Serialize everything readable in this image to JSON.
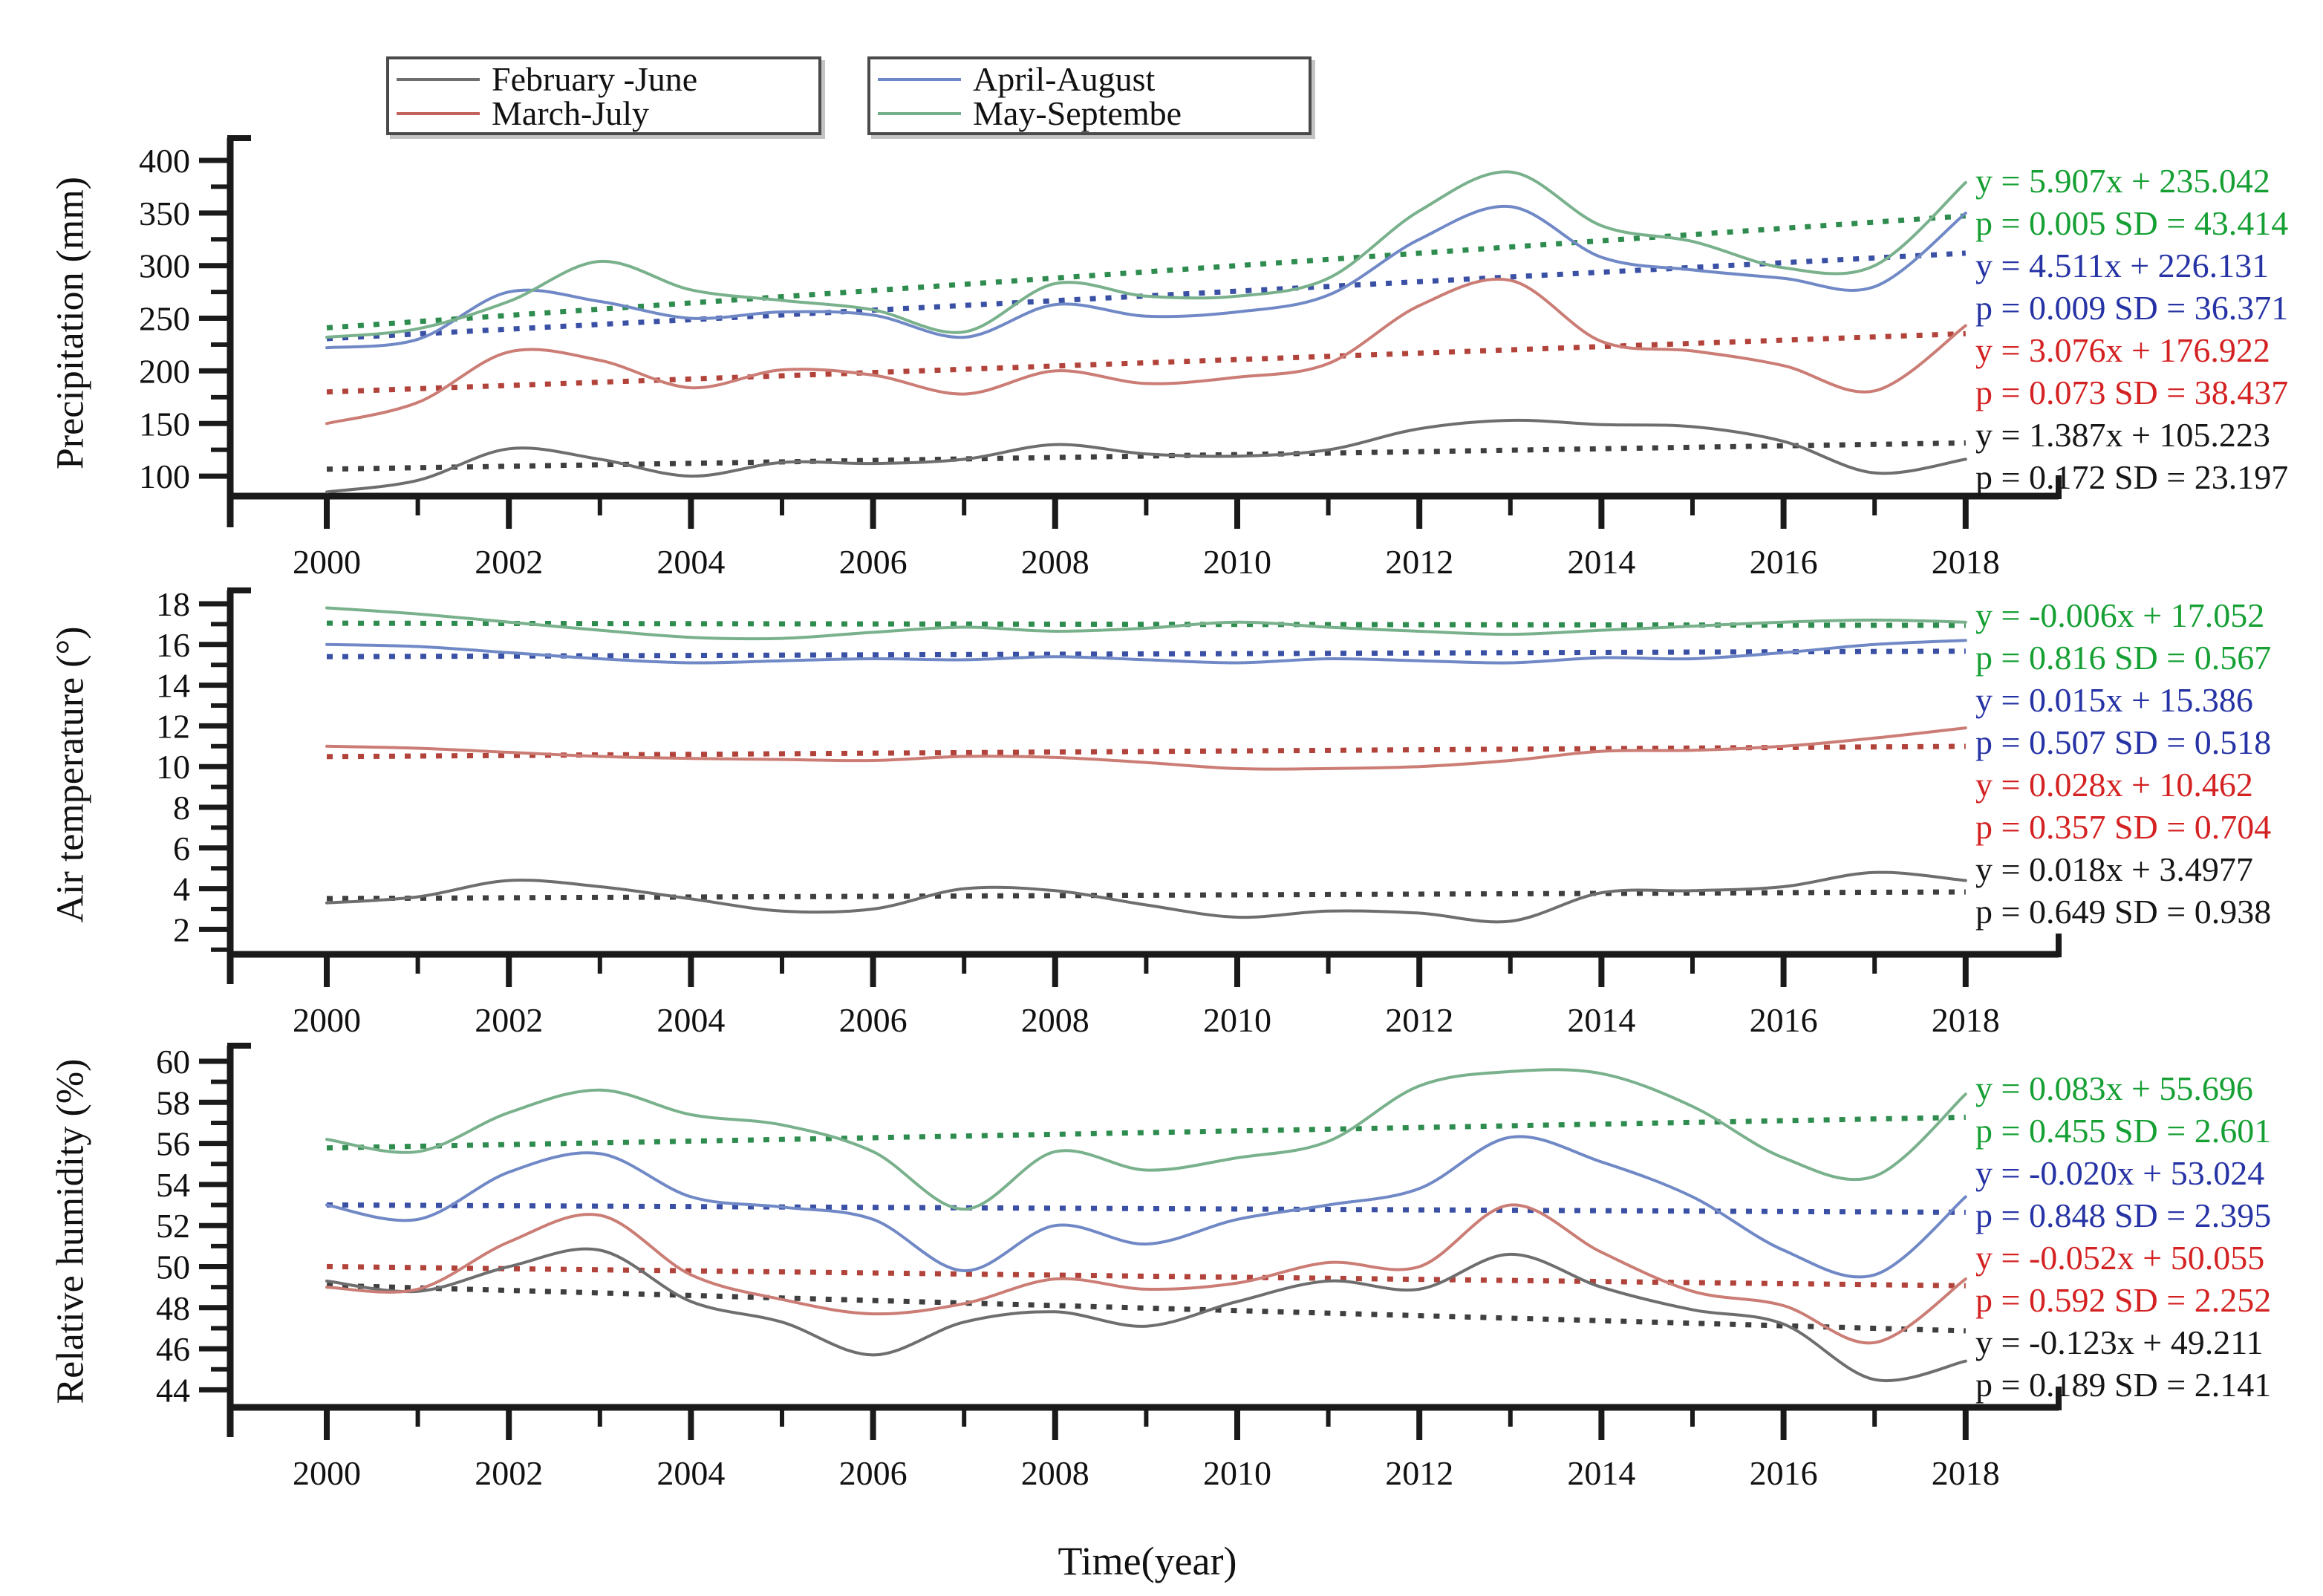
{
  "figure": {
    "xlabel": "Time(year)",
    "x_ticks": [
      2000,
      2002,
      2004,
      2006,
      2008,
      2010,
      2012,
      2014,
      2016,
      2018
    ],
    "legend": {
      "box1": [
        {
          "label": "February -June",
          "color": "#6e6e6e"
        },
        {
          "label": "March-July",
          "color": "#c4635b"
        }
      ],
      "box2": [
        {
          "label": "April-August",
          "color": "#6d87c7"
        },
        {
          "label": "May-Septembe",
          "color": "#74ae8b"
        }
      ]
    }
  },
  "chart_data": [
    {
      "type": "line",
      "panel": "precipitation",
      "ylabel": "Precipitation (mm)",
      "xlabel": "Time(year)",
      "ylim": [
        80,
        420
      ],
      "y_ticks": [
        100,
        150,
        200,
        250,
        300,
        350,
        400
      ],
      "x": [
        2000,
        2001,
        2002,
        2003,
        2004,
        2005,
        2006,
        2007,
        2008,
        2009,
        2010,
        2011,
        2012,
        2013,
        2014,
        2015,
        2016,
        2017,
        2018
      ],
      "grid": false,
      "series": [
        {
          "name": "May-Septembe",
          "colors": {
            "line": "#79b18c",
            "trend": "#2f8c4f",
            "text": "#16a034"
          },
          "values": [
            232,
            240,
            266,
            304,
            277,
            267,
            258,
            237,
            283,
            271,
            271,
            288,
            352,
            389,
            338,
            323,
            298,
            300,
            379
          ],
          "trend": {
            "slope": 5.907,
            "intercept": 235.042,
            "x_definition": "x = year - 1999"
          },
          "annotation": {
            "eq": "y = 5.907x + 235.042",
            "stats": "p = 0.005 SD = 43.414"
          }
        },
        {
          "name": "April-August",
          "colors": {
            "line": "#7089c6",
            "trend": "#3a50a5",
            "text": "#2633a5"
          },
          "values": [
            222,
            230,
            275,
            266,
            250,
            256,
            253,
            232,
            263,
            252,
            256,
            272,
            325,
            356,
            308,
            296,
            288,
            280,
            350
          ],
          "trend": {
            "slope": 4.511,
            "intercept": 226.131,
            "x_definition": "x = year - 1999"
          },
          "annotation": {
            "eq": "y = 4.511x + 226.131",
            "stats": "p = 0.009 SD = 36.371"
          }
        },
        {
          "name": "March-July",
          "colors": {
            "line": "#cb7d75",
            "trend": "#b2433b",
            "text": "#d42222"
          },
          "values": [
            150,
            170,
            218,
            210,
            184,
            201,
            196,
            178,
            200,
            188,
            194,
            207,
            262,
            286,
            228,
            219,
            205,
            181,
            243
          ],
          "trend": {
            "slope": 3.076,
            "intercept": 176.922,
            "x_definition": "x = year - 1999"
          },
          "annotation": {
            "eq": "y = 3.076x + 176.922",
            "stats": "p = 0.073 SD = 38.437"
          }
        },
        {
          "name": "February -June",
          "colors": {
            "line": "#6e6e6e",
            "trend": "#3f3f3f",
            "text": "#161616"
          },
          "values": [
            85,
            96,
            126,
            116,
            100,
            113,
            112,
            116,
            130,
            121,
            119,
            125,
            145,
            153,
            149,
            147,
            133,
            103,
            116
          ],
          "trend": {
            "slope": 1.387,
            "intercept": 105.223,
            "x_definition": "x = year - 1999"
          },
          "annotation": {
            "eq": "y = 1.387x + 105.223",
            "stats": "p = 0.172 SD = 23.197"
          }
        }
      ]
    },
    {
      "type": "line",
      "panel": "air-temperature",
      "ylabel": "Air temperature (°)",
      "xlabel": "Time(year)",
      "ylim": [
        1,
        19
      ],
      "y_ticks": [
        2,
        4,
        6,
        8,
        10,
        12,
        14,
        16,
        18
      ],
      "x": [
        2000,
        2001,
        2002,
        2003,
        2004,
        2005,
        2006,
        2007,
        2008,
        2009,
        2010,
        2011,
        2012,
        2013,
        2014,
        2015,
        2016,
        2017,
        2018
      ],
      "grid": false,
      "series": [
        {
          "name": "May-Septembe",
          "colors": {
            "line": "#79b18c",
            "trend": "#2f8c4f",
            "text": "#16a034"
          },
          "values": [
            17.8,
            17.5,
            17.1,
            16.7,
            16.35,
            16.3,
            16.6,
            16.85,
            16.65,
            16.8,
            17.1,
            16.85,
            16.65,
            16.5,
            16.7,
            16.9,
            17.1,
            17.2,
            17.1
          ],
          "trend": {
            "slope": -0.006,
            "intercept": 17.052,
            "x_definition": "x = year - 1999"
          },
          "annotation": {
            "eq": "y = -0.006x + 17.052",
            "stats": "p = 0.816 SD = 0.567"
          }
        },
        {
          "name": "April-August",
          "colors": {
            "line": "#7089c6",
            "trend": "#3a50a5",
            "text": "#2633a5"
          },
          "values": [
            16.0,
            15.9,
            15.6,
            15.3,
            15.1,
            15.2,
            15.3,
            15.25,
            15.4,
            15.25,
            15.1,
            15.3,
            15.2,
            15.1,
            15.35,
            15.3,
            15.6,
            16.0,
            16.2
          ],
          "trend": {
            "slope": 0.015,
            "intercept": 15.386,
            "x_definition": "x = year - 1999"
          },
          "annotation": {
            "eq": "y = 0.015x + 15.386",
            "stats": "p = 0.507 SD = 0.518"
          }
        },
        {
          "name": "March-July",
          "colors": {
            "line": "#cb7d75",
            "trend": "#b2433b",
            "text": "#d42222"
          },
          "values": [
            11.0,
            10.9,
            10.7,
            10.5,
            10.4,
            10.35,
            10.3,
            10.5,
            10.45,
            10.2,
            9.9,
            9.9,
            10.0,
            10.3,
            10.75,
            10.8,
            11.0,
            11.4,
            11.9
          ],
          "trend": {
            "slope": 0.028,
            "intercept": 10.462,
            "x_definition": "x = year - 1999"
          },
          "annotation": {
            "eq": "y = 0.028x + 10.462",
            "stats": "p = 0.357 SD = 0.704"
          }
        },
        {
          "name": "February -June",
          "colors": {
            "line": "#6e6e6e",
            "trend": "#3f3f3f",
            "text": "#161616"
          },
          "values": [
            3.3,
            3.6,
            4.4,
            4.1,
            3.5,
            2.9,
            3.0,
            4.0,
            3.9,
            3.2,
            2.6,
            2.9,
            2.8,
            2.4,
            3.8,
            3.9,
            4.1,
            4.8,
            4.4
          ],
          "trend": {
            "slope": 0.018,
            "intercept": 3.4977,
            "x_definition": "x = year - 1999"
          },
          "annotation": {
            "eq": "y = 0.018x + 3.4977",
            "stats": "p = 0.649 SD = 0.938"
          }
        }
      ]
    },
    {
      "type": "line",
      "panel": "relative-humidity",
      "ylabel": "Relative humidity (%)",
      "xlabel": "Time(year)",
      "ylim": [
        43,
        61
      ],
      "y_ticks": [
        44,
        46,
        48,
        50,
        52,
        54,
        56,
        58,
        60
      ],
      "x": [
        2000,
        2001,
        2002,
        2003,
        2004,
        2005,
        2006,
        2007,
        2008,
        2009,
        2010,
        2011,
        2012,
        2013,
        2014,
        2015,
        2016,
        2017,
        2018
      ],
      "grid": false,
      "series": [
        {
          "name": "May-Septembe",
          "colors": {
            "line": "#79b18c",
            "trend": "#2f8c4f",
            "text": "#16a034"
          },
          "values": [
            56.2,
            55.6,
            57.5,
            58.6,
            57.4,
            56.9,
            55.6,
            52.8,
            55.6,
            54.7,
            55.3,
            56.1,
            58.8,
            59.5,
            59.4,
            57.8,
            55.3,
            54.4,
            58.4
          ],
          "trend": {
            "slope": 0.083,
            "intercept": 55.696,
            "x_definition": "x = year - 1999"
          },
          "annotation": {
            "eq": "y = 0.083x + 55.696",
            "stats": "p = 0.455 SD = 2.601"
          }
        },
        {
          "name": "April-August",
          "colors": {
            "line": "#7089c6",
            "trend": "#3a50a5",
            "text": "#2633a5"
          },
          "values": [
            53.0,
            52.3,
            54.6,
            55.5,
            53.4,
            52.9,
            52.3,
            49.8,
            52.0,
            51.1,
            52.3,
            53.0,
            53.8,
            56.3,
            55.1,
            53.4,
            50.8,
            49.6,
            53.4
          ],
          "trend": {
            "slope": -0.02,
            "intercept": 53.024,
            "x_definition": "x = year - 1999"
          },
          "annotation": {
            "eq": "y = -0.020x + 53.024",
            "stats": "p = 0.848 SD = 2.395"
          }
        },
        {
          "name": "March-July",
          "colors": {
            "line": "#cb7d75",
            "trend": "#b2433b",
            "text": "#d42222"
          },
          "values": [
            49.0,
            48.9,
            51.2,
            52.5,
            49.6,
            48.4,
            47.7,
            48.2,
            49.4,
            48.9,
            49.2,
            50.2,
            50.0,
            53.0,
            50.7,
            48.8,
            48.1,
            46.3,
            49.4
          ],
          "trend": {
            "slope": -0.052,
            "intercept": 50.055,
            "x_definition": "x = year - 1999"
          },
          "annotation": {
            "eq": "y = -0.052x + 50.055",
            "stats": "p = 0.592 SD = 2.252"
          }
        },
        {
          "name": "February -June",
          "colors": {
            "line": "#6e6e6e",
            "trend": "#3f3f3f",
            "text": "#161616"
          },
          "values": [
            49.3,
            48.8,
            50.0,
            50.8,
            48.3,
            47.3,
            45.7,
            47.3,
            47.8,
            47.1,
            48.3,
            49.3,
            48.9,
            50.6,
            49.0,
            47.9,
            47.2,
            44.5,
            45.4
          ],
          "trend": {
            "slope": -0.123,
            "intercept": 49.211,
            "x_definition": "x = year - 1999"
          },
          "annotation": {
            "eq": "y = -0.123x + 49.211",
            "stats": "p = 0.189 SD = 2.141"
          }
        }
      ]
    }
  ]
}
